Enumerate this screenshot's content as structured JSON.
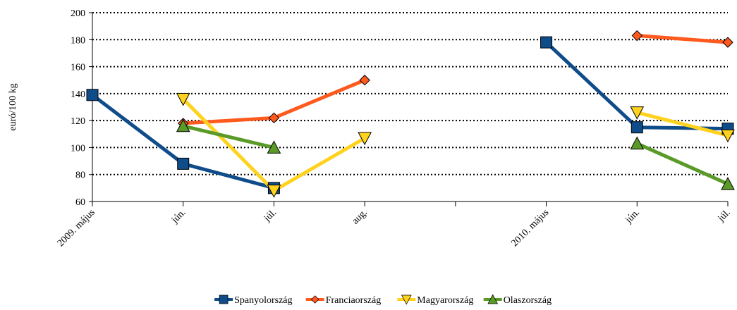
{
  "chart_data": {
    "type": "line",
    "ylabel": "euró/100 kg",
    "categories": [
      "2009. május",
      "jún.",
      "júl.",
      "aug.",
      null,
      "2010. május",
      "jún.",
      "júl."
    ],
    "series": [
      {
        "name": "Spanyolország",
        "color": "#0f4c8a",
        "marker": "square",
        "values": [
          139,
          88,
          70,
          null,
          null,
          178,
          115,
          114
        ]
      },
      {
        "name": "Franciaország",
        "color": "#ff5a1e",
        "marker": "diamond",
        "values": [
          null,
          118,
          122,
          150,
          null,
          null,
          183,
          178
        ]
      },
      {
        "name": "Magyarország",
        "color": "#ffd21e",
        "marker": "triangle-down",
        "values": [
          null,
          136,
          68,
          107,
          null,
          null,
          126,
          109
        ]
      },
      {
        "name": "Olaszország",
        "color": "#5a9a28",
        "marker": "triangle-up",
        "values": [
          null,
          116,
          100,
          null,
          null,
          null,
          103,
          73
        ]
      }
    ],
    "ylim": [
      60,
      200
    ],
    "yticks": [
      60,
      80,
      100,
      120,
      140,
      160,
      180,
      200
    ],
    "grid": true,
    "legend": "bottom"
  }
}
